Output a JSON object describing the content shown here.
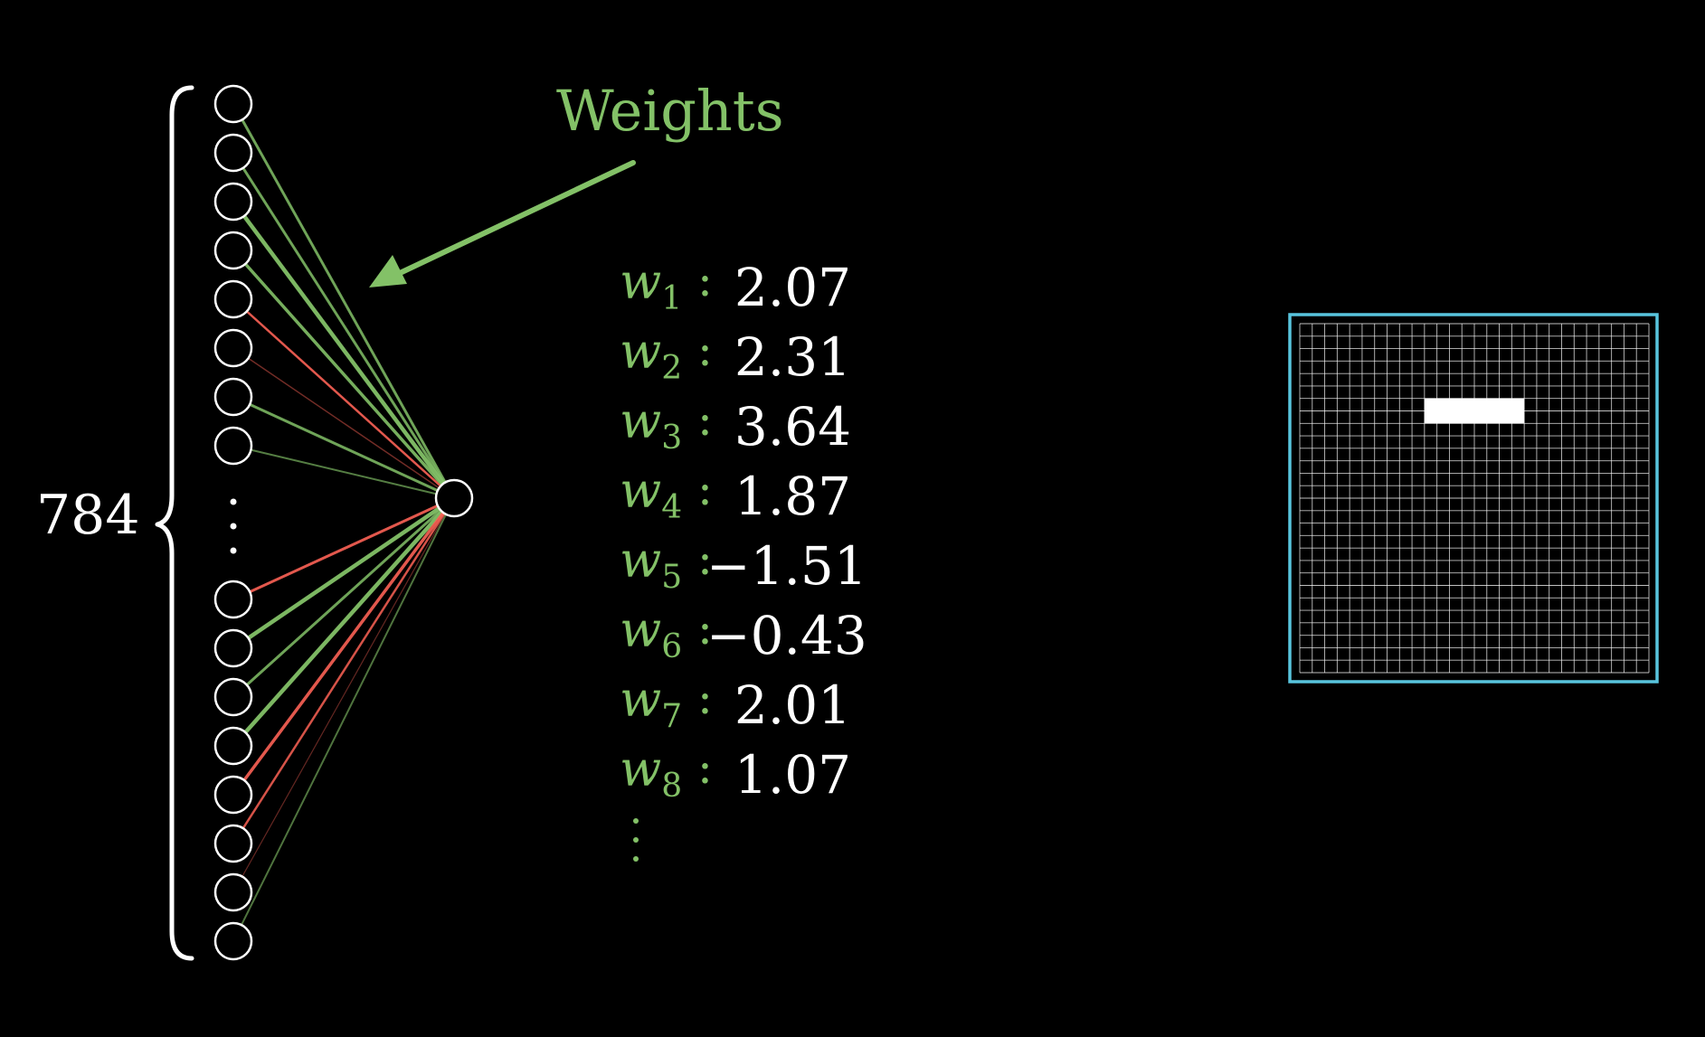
{
  "colors": {
    "background": "#000000",
    "accent_green": "#83c167",
    "negative_red": "#fc6255",
    "grid_border": "#58c4dd",
    "neuron_stroke": "#ffffff"
  },
  "input_layer": {
    "count_label": "784"
  },
  "annotation": {
    "title": "Weights"
  },
  "weights": [
    {
      "symbol": "w",
      "index": "1",
      "value": "2.07"
    },
    {
      "symbol": "w",
      "index": "2",
      "value": "2.31"
    },
    {
      "symbol": "w",
      "index": "3",
      "value": "3.64"
    },
    {
      "symbol": "w",
      "index": "4",
      "value": "1.87"
    },
    {
      "symbol": "w",
      "index": "5",
      "value": "−1.51"
    },
    {
      "symbol": "w",
      "index": "6",
      "value": "−0.43"
    },
    {
      "symbol": "w",
      "index": "7",
      "value": "2.01"
    },
    {
      "symbol": "w",
      "index": "8",
      "value": "1.07"
    }
  ],
  "pixel_grid": {
    "size": 28,
    "highlight_cells": {
      "row_start": 6,
      "row_end": 7,
      "col_start": 10,
      "col_end": 17
    }
  }
}
